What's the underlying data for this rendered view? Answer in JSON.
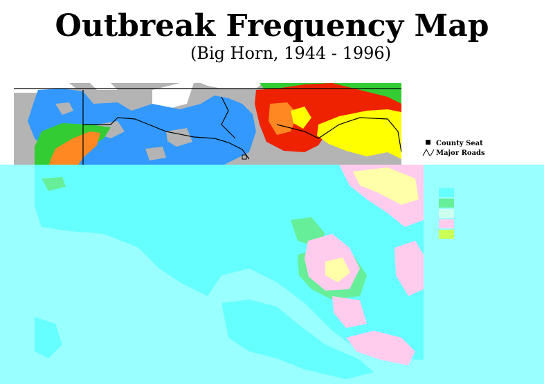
{
  "map": {
    "title": "Outbreak Frequency Map",
    "subtitle": "(Big Horn, 1944 - 1996)"
  },
  "legend": {
    "items": [
      {
        "label": "County Seat",
        "icon": "county-seat-icon"
      },
      {
        "label": "Major Roads",
        "icon": "major-roads-icon"
      }
    ]
  },
  "colors": {
    "gray": "#b4b4b4",
    "blue": "#3399ff",
    "green": "#33cc33",
    "orange": "#ff8822",
    "red": "#ee2200",
    "yellow": "#ffff00",
    "cyan": "#66ffff",
    "mint": "#66ee99",
    "pink": "#ffccee",
    "pale_yellow": "#ffffaa",
    "lime": "#ccff55"
  }
}
